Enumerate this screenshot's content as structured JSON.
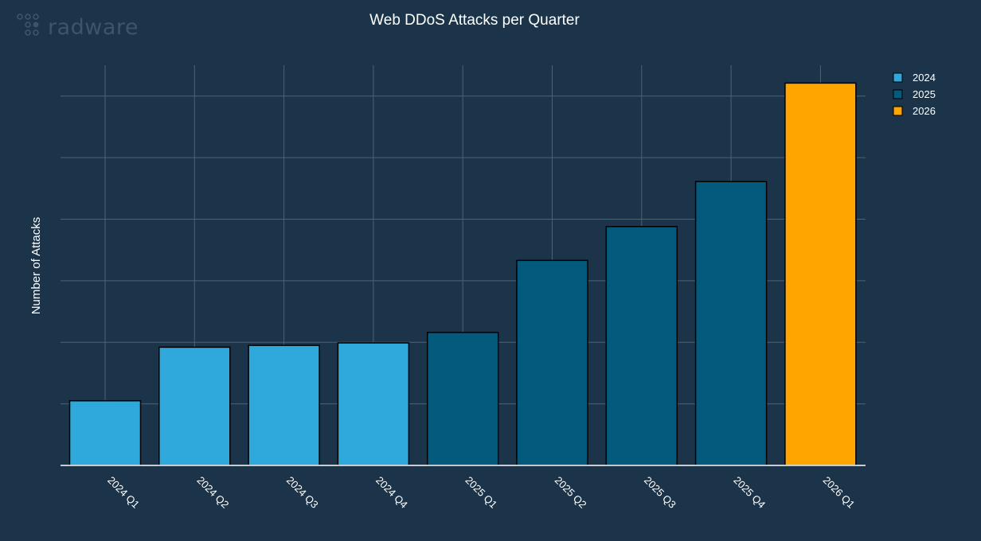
{
  "brand": {
    "logo_text": "radware"
  },
  "chart_data": {
    "type": "bar",
    "title": "Web DDoS Attacks per Quarter",
    "xlabel": "",
    "ylabel": "Number of Attacks",
    "categories": [
      "2024 Q1",
      "2024 Q2",
      "2024 Q3",
      "2024 Q4",
      "2025 Q1",
      "2025 Q2",
      "2025 Q3",
      "2025 Q4",
      "2026 Q1"
    ],
    "values": [
      1.05,
      1.92,
      1.95,
      1.99,
      2.16,
      3.33,
      3.88,
      4.61,
      6.21
    ],
    "groups": [
      "2024",
      "2024",
      "2024",
      "2024",
      "2025",
      "2025",
      "2025",
      "2025",
      "2026"
    ],
    "ylim": [
      0,
      6.5
    ],
    "y_ticks": [
      0,
      1,
      2,
      3,
      4,
      5,
      6
    ],
    "y_tick_labels_shown": false,
    "grid": true,
    "legend": {
      "placement": "top-right",
      "items": [
        {
          "label": "2024",
          "color": "#2fa8db"
        },
        {
          "label": "2025",
          "color": "#045a7d"
        },
        {
          "label": "2026",
          "color": "#ffa500"
        }
      ]
    }
  }
}
